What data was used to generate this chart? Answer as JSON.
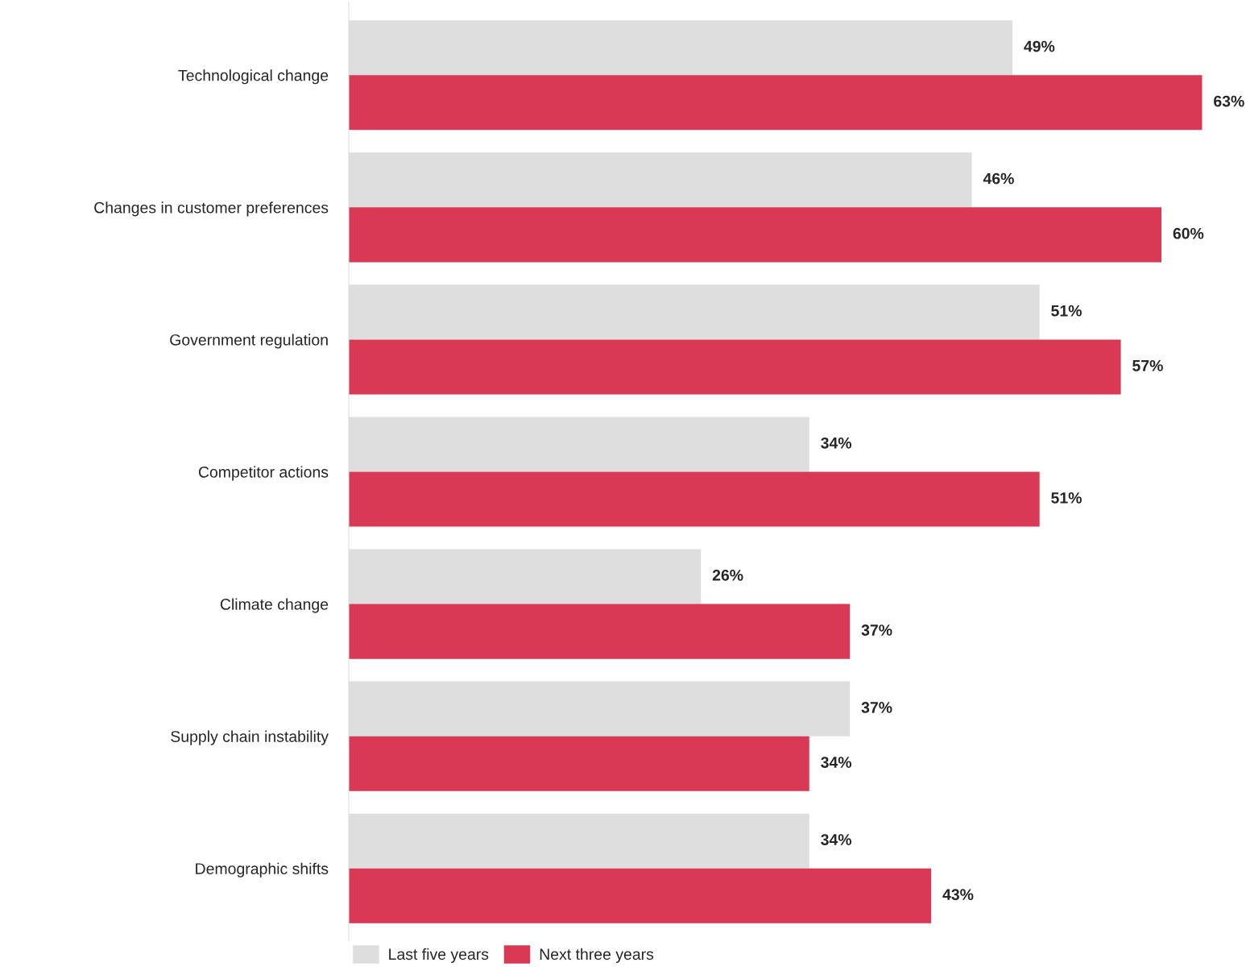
{
  "chart_data": {
    "type": "bar",
    "orientation": "horizontal",
    "categories": [
      "Technological change",
      "Changes in customer preferences",
      "Government regulation",
      "Competitor actions",
      "Climate change",
      "Supply chain instability",
      "Demographic shifts"
    ],
    "series": [
      {
        "name": "Last five years",
        "color": "#dedede",
        "values": [
          49,
          46,
          51,
          34,
          26,
          37,
          34
        ],
        "value_labels": [
          "49%",
          "46%",
          "51%",
          "34%",
          "26%",
          "37%",
          "34%"
        ]
      },
      {
        "name": "Next three years",
        "color": "#d93954",
        "values": [
          63,
          60,
          57,
          51,
          37,
          34,
          43
        ],
        "value_labels": [
          "63%",
          "60%",
          "57%",
          "51%",
          "37%",
          "34%",
          "43%"
        ]
      }
    ],
    "legend": "bottom left",
    "grid": false,
    "tick_labels": "y"
  }
}
